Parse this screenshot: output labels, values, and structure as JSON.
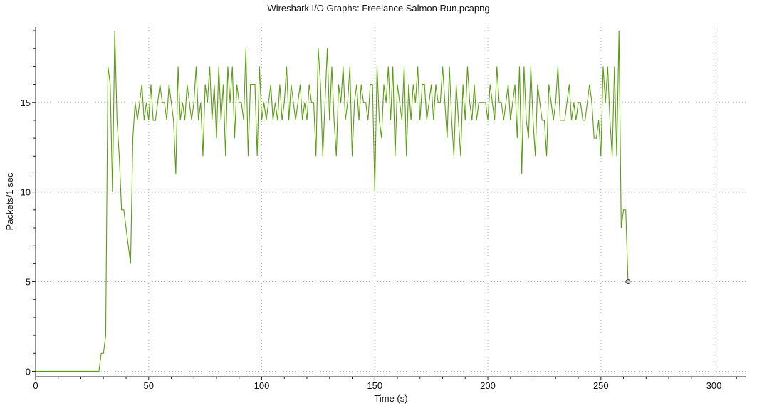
{
  "window": {
    "title": "Wireshark I/O Graphs: Freelance Salmon Run.pcapng"
  },
  "colors": {
    "series": "#5a9e0e",
    "grid": "#b8b8b8",
    "axis": "#222222",
    "end_marker": "#333333"
  },
  "chart_data": {
    "type": "line",
    "title": "Wireshark I/O Graphs: Freelance Salmon Run.pcapng",
    "xlabel": "Time (s)",
    "ylabel": "Packets/1 sec",
    "xlim": [
      0,
      314
    ],
    "ylim": [
      -0.3,
      19.2
    ],
    "xticks": [
      0,
      50,
      100,
      150,
      200,
      250,
      300
    ],
    "xtick_labels": [
      "0",
      "50",
      "100",
      "150",
      "200",
      "250",
      "300"
    ],
    "xminor_step": 10,
    "yticks": [
      0,
      5,
      10,
      15
    ],
    "ytick_labels": [
      "0",
      "5",
      "10",
      "15"
    ],
    "yminor_step": 1,
    "grid": true,
    "legend": "none",
    "end_marker": "last-point",
    "series": [
      {
        "x_start": 0,
        "x_step": 1,
        "values": [
          0,
          0,
          0,
          0,
          0,
          0,
          0,
          0,
          0,
          0,
          0,
          0,
          0,
          0,
          0,
          0,
          0,
          0,
          0,
          0,
          0,
          0,
          0,
          0,
          0,
          0,
          0,
          0,
          0,
          1,
          1,
          2,
          17,
          16,
          10,
          19,
          14,
          12,
          9,
          9,
          8,
          7,
          6,
          13,
          15,
          14,
          15,
          16,
          14,
          15,
          14,
          16,
          14,
          14,
          15,
          16,
          15,
          15,
          14,
          16,
          15,
          14,
          11,
          17,
          14,
          15,
          14,
          16,
          15,
          14,
          15,
          17,
          14,
          15,
          12,
          16,
          15,
          17,
          14,
          16,
          13,
          17,
          14,
          16,
          12,
          17,
          15,
          17,
          13,
          16,
          15,
          15,
          14,
          18,
          12,
          16,
          16,
          16,
          12,
          17,
          14,
          15,
          14,
          15,
          16,
          14,
          15,
          14,
          16,
          14,
          15,
          17,
          14,
          16,
          15,
          14,
          15,
          16,
          14,
          15,
          14,
          16,
          15,
          15,
          12,
          18,
          16,
          12,
          15,
          18,
          14,
          17,
          14,
          12,
          16,
          15,
          17,
          14,
          15,
          17,
          12,
          15,
          16,
          14,
          16,
          15,
          15,
          14,
          16,
          16,
          10,
          17,
          14,
          13,
          16,
          15,
          17,
          14,
          17,
          12,
          16,
          15,
          14,
          17,
          12,
          16,
          14,
          16,
          15,
          17,
          14,
          16,
          16,
          14,
          15,
          16,
          14,
          16,
          15,
          15,
          17,
          15,
          13,
          17,
          14,
          12,
          16,
          14,
          12,
          16,
          14,
          17,
          15,
          14,
          16,
          14,
          15,
          15,
          15,
          15,
          14,
          16,
          15,
          14,
          17,
          15,
          15,
          14,
          15,
          16,
          14,
          15,
          16,
          13,
          17,
          11,
          17,
          14,
          13,
          17,
          14,
          12,
          16,
          15,
          14,
          14,
          12,
          16,
          15,
          14,
          15,
          17,
          14,
          14,
          14,
          15,
          16,
          14,
          15,
          14,
          15,
          15,
          14,
          14,
          15,
          16,
          15,
          13,
          13,
          14,
          12,
          17,
          15,
          17,
          14,
          12,
          17,
          12,
          19,
          8,
          9,
          9,
          5
        ]
      }
    ]
  }
}
